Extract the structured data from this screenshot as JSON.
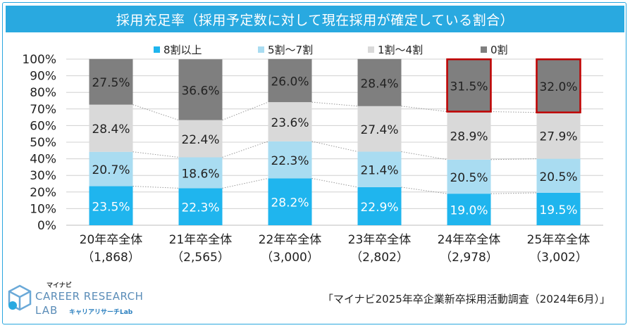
{
  "title": "採用充足率（採用予定数に対して現在採用が確定している割合）",
  "source": "「マイナビ2025年卒企業新卒採用活動調査（2024年6月）」",
  "logo": {
    "small": "マイナビ",
    "main": "CAREER RESEARCH",
    "lab": "LAB",
    "sub": "キャリアリサーチLab"
  },
  "colors": {
    "title_bar": "#29a9e0",
    "s8": "#1fb5ee",
    "s5": "#a9dcf1",
    "s1": "#d9d9d9",
    "s0": "#7f7f7f",
    "highlight": "#c00000"
  },
  "chart_data": {
    "type": "bar",
    "stacked": true,
    "categories": [
      "20年卒全体",
      "21年卒全体",
      "22年卒全体",
      "23年卒全体",
      "24年卒全体",
      "25年卒全体"
    ],
    "category_counts": [
      "（1,868）",
      "（2,565）",
      "（3,000）",
      "（2,802）",
      "（2,978）",
      "（3,002）"
    ],
    "series": [
      {
        "name": "8割以上",
        "values": [
          23.5,
          22.3,
          28.2,
          22.9,
          19.0,
          19.5
        ],
        "labels": [
          "23.5%",
          "22.3%",
          "28.2%",
          "22.9%",
          "19.0%",
          "19.5%"
        ]
      },
      {
        "name": "5割〜7割",
        "values": [
          20.7,
          18.6,
          22.3,
          21.4,
          20.5,
          20.5
        ],
        "labels": [
          "20.7%",
          "18.6%",
          "22.3%",
          "21.4%",
          "20.5%",
          "20.5%"
        ]
      },
      {
        "name": "1割〜4割",
        "values": [
          28.4,
          22.4,
          23.6,
          27.4,
          28.9,
          27.9
        ],
        "labels": [
          "28.4%",
          "22.4%",
          "23.6%",
          "27.4%",
          "28.9%",
          "27.9%"
        ]
      },
      {
        "name": "0割",
        "values": [
          27.5,
          36.6,
          26.0,
          28.4,
          31.5,
          32.0
        ],
        "labels": [
          "27.5%",
          "36.6%",
          "26.0%",
          "28.4%",
          "31.5%",
          "32.0%"
        ]
      }
    ],
    "y_ticks": [
      "0%",
      "10%",
      "20%",
      "30%",
      "40%",
      "50%",
      "60%",
      "70%",
      "80%",
      "90%",
      "100%"
    ],
    "ylim": [
      0,
      100
    ],
    "legend_position": "top",
    "grid": true,
    "highlighted": [
      "24年卒全体",
      "25年卒全体"
    ]
  }
}
